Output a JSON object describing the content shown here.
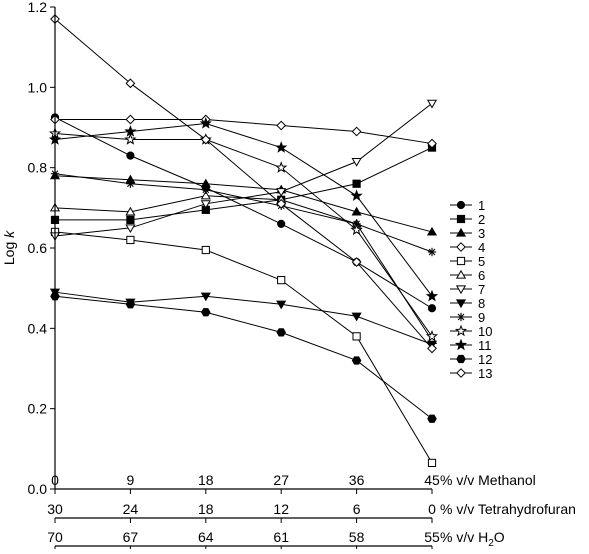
{
  "chart_data": {
    "type": "line",
    "ylabel_prefix": "Log ",
    "ylabel_italic": "k",
    "ylim": [
      0,
      1.2
    ],
    "yticks": [
      "0.0",
      "0.2",
      "0.4",
      "0.6",
      "0.8",
      "1.0",
      "1.2"
    ],
    "x": [
      0,
      9,
      18,
      27,
      36,
      45
    ],
    "x_axes": [
      {
        "ticks": [
          "0",
          "9",
          "18",
          "27",
          "36",
          "45"
        ],
        "label": "% v/v Methanol"
      },
      {
        "ticks": [
          "30",
          "24",
          "18",
          "12",
          "6",
          "0"
        ],
        "label": "% v/v Tetrahydrofuran"
      },
      {
        "ticks": [
          "70",
          "67",
          "64",
          "61",
          "58",
          "55"
        ],
        "label": "% v/v H",
        "label_sub": "2",
        "label_end": "O"
      }
    ],
    "grid": false,
    "legend_position": "right",
    "series": [
      {
        "name": "1",
        "marker": "circle-filled",
        "values": [
          0.925,
          0.83,
          0.75,
          0.66,
          0.565,
          0.45
        ]
      },
      {
        "name": "2",
        "marker": "square-filled",
        "values": [
          0.67,
          0.67,
          0.695,
          0.72,
          0.76,
          0.85
        ]
      },
      {
        "name": "3",
        "marker": "triangle-filled",
        "values": [
          0.78,
          0.77,
          0.76,
          0.745,
          0.69,
          0.64
        ]
      },
      {
        "name": "4",
        "marker": "diamond-open",
        "values": [
          0.92,
          0.92,
          0.92,
          0.905,
          0.89,
          0.86
        ]
      },
      {
        "name": "5",
        "marker": "square-open",
        "values": [
          0.64,
          0.62,
          0.595,
          0.52,
          0.38,
          0.065
        ]
      },
      {
        "name": "6",
        "marker": "triangle-open",
        "values": [
          0.7,
          0.69,
          0.73,
          0.72,
          0.66,
          0.37
        ]
      },
      {
        "name": "7",
        "marker": "triangle-down-open",
        "values": [
          0.63,
          0.65,
          0.71,
          0.74,
          0.815,
          0.96
        ]
      },
      {
        "name": "8",
        "marker": "triangle-down-filled",
        "values": [
          0.49,
          0.465,
          0.48,
          0.46,
          0.43,
          0.36
        ]
      },
      {
        "name": "9",
        "marker": "asterisk",
        "values": [
          0.785,
          0.76,
          0.745,
          0.705,
          0.66,
          0.59
        ]
      },
      {
        "name": "10",
        "marker": "star-open",
        "values": [
          0.885,
          0.87,
          0.87,
          0.8,
          0.645,
          0.38
        ]
      },
      {
        "name": "11",
        "marker": "star-filled",
        "values": [
          0.87,
          0.89,
          0.91,
          0.85,
          0.73,
          0.48
        ]
      },
      {
        "name": "12",
        "marker": "hexagon-filled",
        "values": [
          0.48,
          0.46,
          0.44,
          0.39,
          0.32,
          0.175
        ]
      },
      {
        "name": "13",
        "marker": "diamond-open",
        "values": [
          1.17,
          1.01,
          0.87,
          0.71,
          0.565,
          0.35
        ]
      }
    ]
  }
}
